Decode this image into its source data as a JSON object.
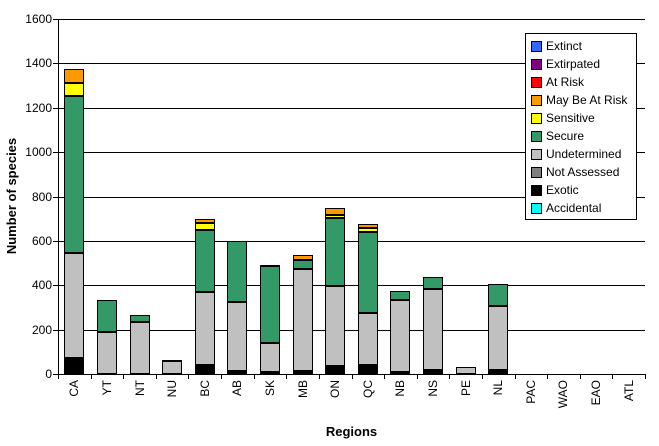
{
  "chart_data": {
    "type": "bar",
    "stacked": true,
    "title": "",
    "xlabel": "Regions",
    "ylabel": "Number of species",
    "ylim": [
      0,
      1600
    ],
    "yticks": [
      0,
      200,
      400,
      600,
      800,
      1000,
      1200,
      1400,
      1600
    ],
    "grid": true,
    "legend_position": "top-right",
    "plot_background": "#FFFFFF",
    "gridline_color": "#000000",
    "categories": [
      "CA",
      "YT",
      "NT",
      "NU",
      "BC",
      "AB",
      "SK",
      "MB",
      "ON",
      "QC",
      "NB",
      "NS",
      "PE",
      "NL",
      "PAC",
      "WAO",
      "EAO",
      "ATL"
    ],
    "stack_order_bottom_to_top": [
      "Accidental",
      "Exotic",
      "Not Assessed",
      "Undetermined",
      "Secure",
      "Sensitive",
      "May Be At Risk",
      "At Risk",
      "Extirpated",
      "Extinct"
    ],
    "series": [
      {
        "name": "Extinct",
        "color": "#3366FF",
        "values": [
          0,
          0,
          0,
          0,
          0,
          0,
          0,
          0,
          0,
          0,
          0,
          0,
          0,
          0,
          0,
          0,
          0,
          0
        ]
      },
      {
        "name": "Extirpated",
        "color": "#800080",
        "values": [
          0,
          0,
          0,
          0,
          0,
          0,
          0,
          0,
          0,
          0,
          0,
          0,
          0,
          0,
          0,
          0,
          0,
          0
        ]
      },
      {
        "name": "At Risk",
        "color": "#FF0000",
        "values": [
          0,
          0,
          0,
          0,
          0,
          0,
          0,
          0,
          0,
          0,
          0,
          0,
          0,
          0,
          0,
          0,
          0,
          0
        ]
      },
      {
        "name": "May Be At Risk",
        "color": "#FF9900",
        "values": [
          65,
          0,
          0,
          0,
          20,
          0,
          5,
          20,
          35,
          15,
          0,
          0,
          0,
          0,
          0,
          0,
          0,
          0
        ]
      },
      {
        "name": "Sensitive",
        "color": "#FFFF00",
        "values": [
          55,
          0,
          0,
          0,
          30,
          0,
          0,
          0,
          10,
          20,
          0,
          0,
          0,
          0,
          0,
          0,
          0,
          0
        ]
      },
      {
        "name": "Secure",
        "color": "#339966",
        "values": [
          710,
          145,
          30,
          5,
          280,
          275,
          345,
          40,
          310,
          365,
          40,
          50,
          0,
          100,
          0,
          0,
          0,
          0
        ]
      },
      {
        "name": "Undetermined",
        "color": "#C0C0C0",
        "values": [
          475,
          190,
          235,
          60,
          330,
          310,
          130,
          460,
          360,
          235,
          325,
          365,
          30,
          285,
          0,
          0,
          0,
          0
        ]
      },
      {
        "name": "Not Assessed",
        "color": "#808080",
        "values": [
          0,
          0,
          0,
          0,
          0,
          0,
          0,
          0,
          0,
          0,
          0,
          0,
          0,
          0,
          0,
          0,
          0,
          0
        ]
      },
      {
        "name": "Exotic",
        "color": "#000000",
        "values": [
          70,
          0,
          0,
          0,
          40,
          15,
          10,
          15,
          35,
          40,
          10,
          20,
          0,
          20,
          0,
          0,
          0,
          0
        ]
      },
      {
        "name": "Accidental",
        "color": "#00FFFF",
        "values": [
          0,
          0,
          0,
          0,
          0,
          0,
          0,
          0,
          0,
          0,
          0,
          0,
          0,
          0,
          0,
          0,
          0,
          0
        ]
      }
    ]
  }
}
